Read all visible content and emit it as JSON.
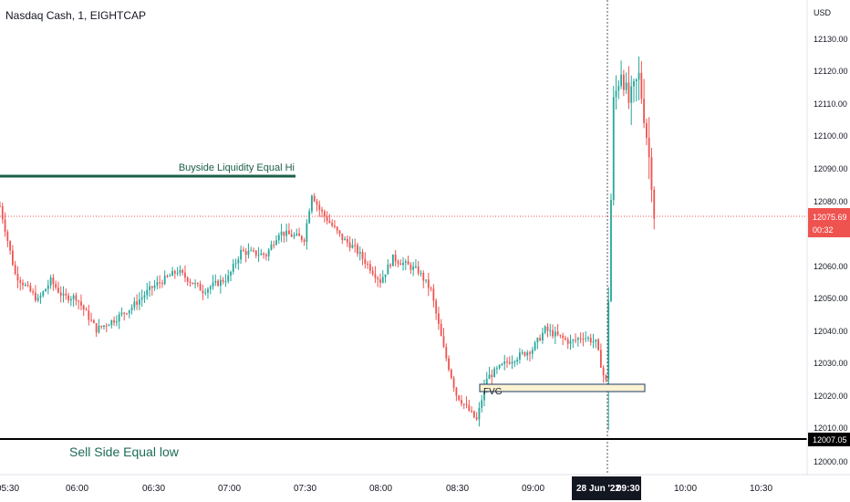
{
  "header": {
    "title": "Nasdaq Cash, 1, EIGHTCAP"
  },
  "price_axis": {
    "currency": "USD",
    "ticks": [
      "12130.00",
      "12120.00",
      "12110.00",
      "12100.00",
      "12090.00",
      "12080.00",
      "12060.00",
      "12050.00",
      "12040.00",
      "12030.00",
      "12020.00",
      "12010.00",
      "12000.00"
    ],
    "current_price": "12075.69",
    "countdown": "00:32",
    "sell_side_price": "12007.05"
  },
  "time_axis": {
    "ticks": [
      "05:30",
      "06:00",
      "06:30",
      "07:00",
      "07:30",
      "08:00",
      "08:30",
      "09:00",
      "10:00",
      "10:30"
    ],
    "crosshair_date": "28 Jun '22",
    "crosshair_time": "09:30"
  },
  "annotations": {
    "buyside_label": "Buyside Liquidity Equal Hi",
    "sellside_label": "Sell Side Equal low",
    "fvg_label": "FVG"
  },
  "colors": {
    "up": "#26a69a",
    "down": "#ef5350",
    "buyside_line": "#1b5e4a",
    "sellside_line": "#000000",
    "sellside_text": "#1b6b57",
    "fvg_fill": "#fdf3d2",
    "fvg_border": "#1e3a66",
    "price_tag": "#ef5350",
    "axis_text": "#131722"
  },
  "chart_data": {
    "type": "candlestick",
    "title": "Nasdaq Cash, 1, EIGHTCAP",
    "ylim": [
      11996,
      12140
    ],
    "xlim": [
      "05:30",
      "10:50"
    ],
    "key_levels": {
      "buyside_equal_high": 12088,
      "sellside_equal_low": 12007.05,
      "fvg_range": [
        12022,
        12023.5
      ],
      "last_price": 12075.69
    },
    "keypoints": [
      [
        "05:30",
        12078
      ],
      [
        "05:36",
        12057
      ],
      [
        "05:45",
        12049
      ],
      [
        "05:50",
        12055
      ],
      [
        "05:55",
        12050
      ],
      [
        "06:00",
        12050
      ],
      [
        "06:08",
        12040
      ],
      [
        "06:15",
        12043
      ],
      [
        "06:22",
        12047
      ],
      [
        "06:30",
        12053
      ],
      [
        "06:40",
        12058
      ],
      [
        "06:50",
        12052
      ],
      [
        "07:00",
        12056
      ],
      [
        "07:05",
        12064
      ],
      [
        "07:15",
        12063
      ],
      [
        "07:20",
        12070
      ],
      [
        "07:30",
        12068
      ],
      [
        "07:33",
        12082
      ],
      [
        "07:36",
        12077
      ],
      [
        "07:45",
        12068
      ],
      [
        "07:50",
        12065
      ],
      [
        "07:55",
        12060
      ],
      [
        "08:00",
        12055
      ],
      [
        "08:05",
        12062
      ],
      [
        "08:10",
        12060
      ],
      [
        "08:15",
        12058
      ],
      [
        "08:20",
        12052
      ],
      [
        "08:25",
        12034
      ],
      [
        "08:30",
        12020
      ],
      [
        "08:35",
        12015
      ],
      [
        "08:38",
        12012
      ],
      [
        "08:42",
        12025
      ],
      [
        "08:50",
        12030
      ],
      [
        "09:00",
        12034
      ],
      [
        "09:05",
        12040
      ],
      [
        "09:10",
        12038
      ],
      [
        "09:15",
        12036
      ],
      [
        "09:20",
        12038
      ],
      [
        "09:25",
        12036
      ],
      [
        "09:28",
        12026
      ],
      [
        "09:29",
        12024
      ],
      [
        "09:30",
        12050
      ],
      [
        "09:32",
        12110
      ],
      [
        "09:35",
        12120
      ],
      [
        "09:38",
        12110
      ],
      [
        "09:42",
        12118
      ],
      [
        "09:45",
        12100
      ],
      [
        "09:47",
        12086
      ],
      [
        "09:48",
        12075.69
      ]
    ]
  }
}
